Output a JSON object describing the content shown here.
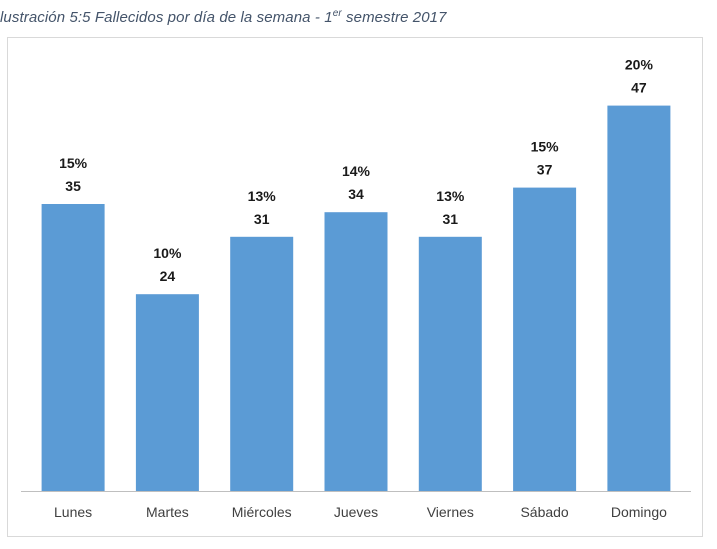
{
  "caption": {
    "prefix": "lustración 5:5 Fallecidos por día de la semana - 1",
    "superscript": "er",
    "suffix": " semestre 2017"
  },
  "chart_data": {
    "type": "bar",
    "title": "lustración 5:5 Fallecidos por día de la semana - 1er semestre 2017",
    "categories": [
      "Lunes",
      "Martes",
      "Miércoles",
      "Jueves",
      "Viernes",
      "Sábado",
      "Domingo"
    ],
    "values": [
      35,
      24,
      31,
      34,
      31,
      37,
      47
    ],
    "percent_labels": [
      "15%",
      "10%",
      "13%",
      "14%",
      "13%",
      "15%",
      "20%"
    ],
    "value_labels": [
      "35",
      "24",
      "31",
      "34",
      "31",
      "37",
      "47"
    ],
    "ylim": [
      0,
      52
    ],
    "grid": false,
    "legend": "none",
    "bar_color": "#5b9bd5"
  }
}
